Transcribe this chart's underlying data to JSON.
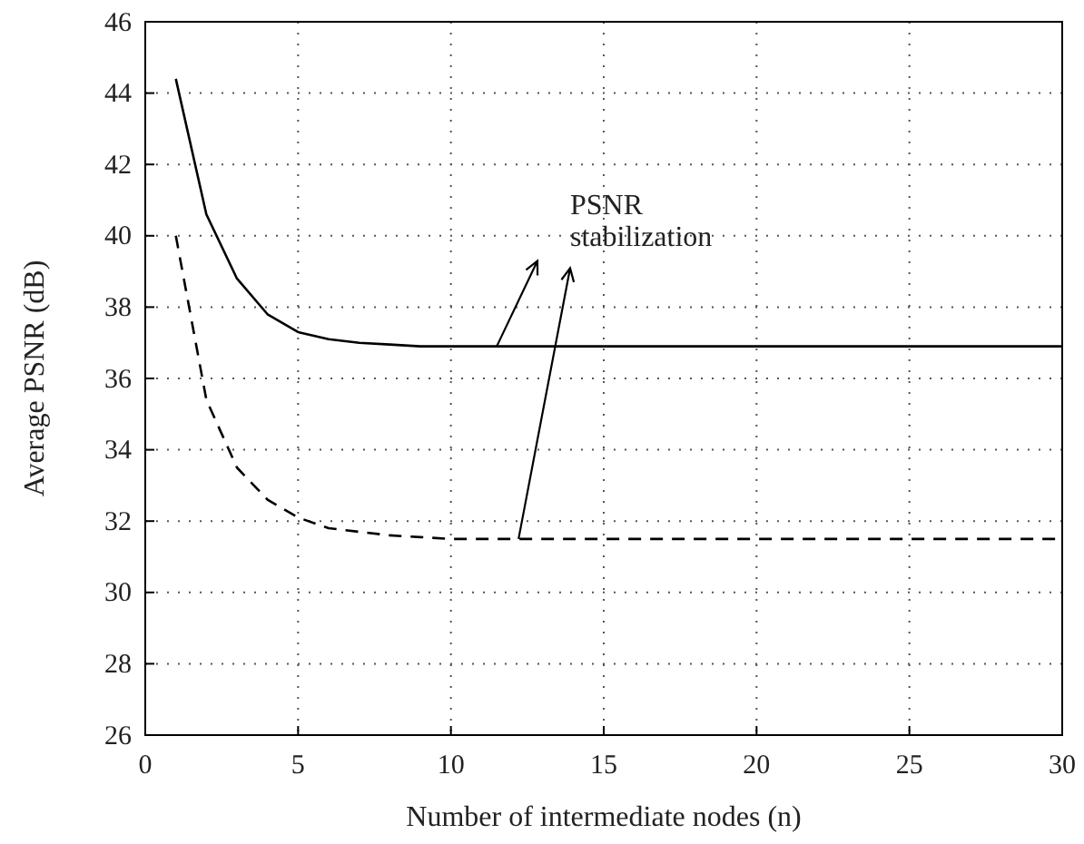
{
  "chart_data": {
    "type": "line",
    "xlabel": "Number of intermediate nodes (n)",
    "ylabel": "Average PSNR (dB)",
    "xlim": [
      0,
      30
    ],
    "xticks": [
      0,
      5,
      10,
      15,
      20,
      25,
      30
    ],
    "ylim": [
      26,
      46
    ],
    "yticks": [
      26,
      28,
      30,
      32,
      34,
      36,
      38,
      40,
      42,
      44,
      46
    ],
    "grid": true,
    "series": [
      {
        "color": "#000000",
        "line_style": "solid",
        "x": [
          1,
          2,
          3,
          4,
          5,
          6,
          7,
          8,
          9,
          10,
          15,
          20,
          25,
          30
        ],
        "values": [
          44.4,
          40.6,
          38.8,
          37.8,
          37.3,
          37.1,
          37.0,
          36.95,
          36.9,
          36.9,
          36.9,
          36.9,
          36.9,
          36.9
        ]
      },
      {
        "color": "#000000",
        "line_style": "dashed",
        "x": [
          1,
          2,
          3,
          4,
          5,
          6,
          7,
          8,
          9,
          10,
          15,
          20,
          25,
          30
        ],
        "values": [
          40.0,
          35.4,
          33.5,
          32.6,
          32.1,
          31.8,
          31.7,
          31.6,
          31.55,
          31.5,
          31.5,
          31.5,
          31.5,
          31.5
        ]
      }
    ],
    "annotations": [
      {
        "text": "PSNR stabilization",
        "x": 11.5,
        "y": 36.9
      }
    ]
  }
}
